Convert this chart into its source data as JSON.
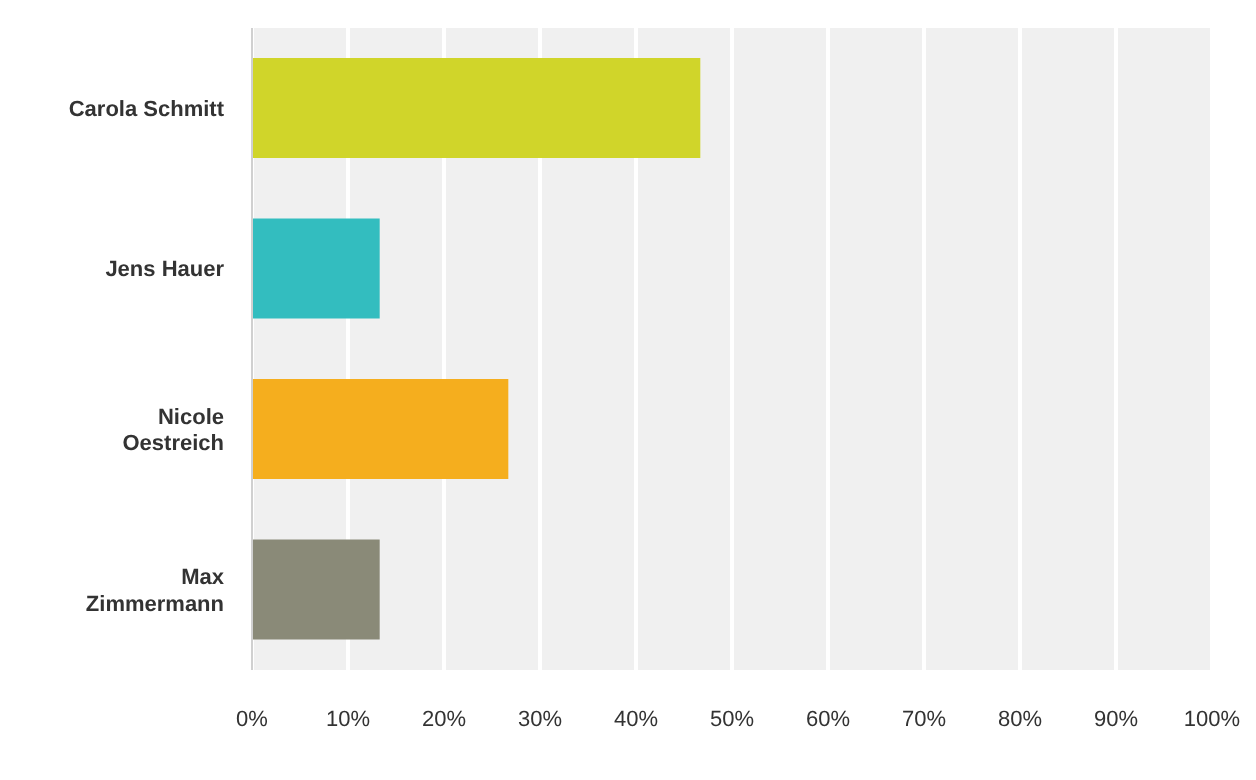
{
  "chart_data": {
    "type": "bar",
    "orientation": "horizontal",
    "categories": [
      "Carola Schmitt",
      "Jens Hauer",
      "Nicole Oestreich",
      "Max Zimmermann"
    ],
    "values": [
      46.7,
      13.3,
      26.7,
      13.3
    ],
    "colors": [
      "#d0d52a",
      "#33bdbf",
      "#f5ae1e",
      "#8a8a78"
    ],
    "xlim": [
      0,
      100
    ],
    "xticks": [
      {
        "value": 0,
        "label": "0%"
      },
      {
        "value": 10,
        "label": "10%"
      },
      {
        "value": 20,
        "label": "20%"
      },
      {
        "value": 30,
        "label": "30%"
      },
      {
        "value": 40,
        "label": "40%"
      },
      {
        "value": 50,
        "label": "50%"
      },
      {
        "value": 60,
        "label": "60%"
      },
      {
        "value": 70,
        "label": "70%"
      },
      {
        "value": 80,
        "label": "80%"
      },
      {
        "value": 90,
        "label": "90%"
      },
      {
        "value": 100,
        "label": "100%"
      }
    ],
    "grid": "x"
  }
}
